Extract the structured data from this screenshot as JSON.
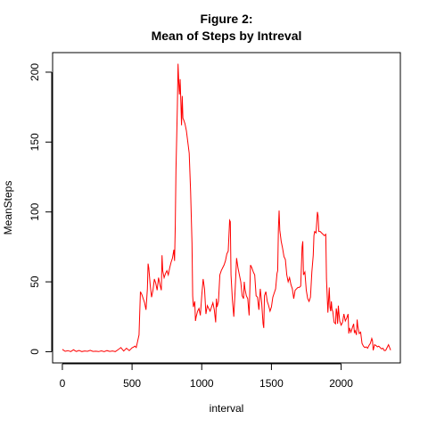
{
  "chart_data": {
    "type": "line",
    "title": "Figure 2:",
    "subtitle": "Mean of Steps by Intreval",
    "xlabel": "interval",
    "ylabel": "MeanSteps",
    "xlim": [
      -70,
      2425
    ],
    "ylim": [
      -8,
      214
    ],
    "x_ticks": [
      0,
      500,
      1000,
      1500,
      2000
    ],
    "y_ticks": [
      0,
      50,
      100,
      150,
      200
    ],
    "grid": false,
    "legend": "none",
    "line_color": "#ff0000",
    "series": [
      {
        "color": "#ff0000",
        "points": [
          [
            0,
            1.7
          ],
          [
            20,
            0.3
          ],
          [
            40,
            0.8
          ],
          [
            60,
            0.1
          ],
          [
            80,
            1.4
          ],
          [
            100,
            0.2
          ],
          [
            120,
            0.9
          ],
          [
            140,
            0.1
          ],
          [
            160,
            0.5
          ],
          [
            180,
            0.3
          ],
          [
            200,
            1.0
          ],
          [
            220,
            0.2
          ],
          [
            240,
            0.4
          ],
          [
            260,
            0.1
          ],
          [
            280,
            0.6
          ],
          [
            300,
            0.1
          ],
          [
            320,
            0.8
          ],
          [
            340,
            0.2
          ],
          [
            360,
            0.5
          ],
          [
            380,
            0.1
          ],
          [
            400,
            1.5
          ],
          [
            420,
            3.0
          ],
          [
            440,
            0.5
          ],
          [
            460,
            2.5
          ],
          [
            480,
            0.8
          ],
          [
            500,
            2.8
          ],
          [
            510,
            3.3
          ],
          [
            520,
            4.0
          ],
          [
            530,
            3.0
          ],
          [
            540,
            7.5
          ],
          [
            550,
            12.0
          ],
          [
            560,
            43.0
          ],
          [
            570,
            41.0
          ],
          [
            580,
            38.0
          ],
          [
            590,
            35.0
          ],
          [
            600,
            30.0
          ],
          [
            610,
            45.0
          ],
          [
            615,
            63.0
          ],
          [
            620,
            60.0
          ],
          [
            630,
            48.0
          ],
          [
            640,
            39.0
          ],
          [
            650,
            44.0
          ],
          [
            660,
            52.0
          ],
          [
            670,
            49.0
          ],
          [
            680,
            44.0
          ],
          [
            690,
            53.0
          ],
          [
            700,
            48.0
          ],
          [
            710,
            44.0
          ],
          [
            715,
            69.0
          ],
          [
            720,
            58.0
          ],
          [
            730,
            53.0
          ],
          [
            740,
            56.0
          ],
          [
            750,
            58.0
          ],
          [
            760,
            55.0
          ],
          [
            770,
            60.0
          ],
          [
            780,
            64.0
          ],
          [
            790,
            67.0
          ],
          [
            800,
            73.0
          ],
          [
            805,
            65.0
          ],
          [
            810,
            90.0
          ],
          [
            815,
            130.0
          ],
          [
            820,
            152.0
          ],
          [
            825,
            175.0
          ],
          [
            830,
            206.0
          ],
          [
            835,
            193.0
          ],
          [
            840,
            184.0
          ],
          [
            845,
            195.0
          ],
          [
            850,
            179.0
          ],
          [
            855,
            162.0
          ],
          [
            860,
            183.0
          ],
          [
            865,
            167.0
          ],
          [
            870,
            166.0
          ],
          [
            880,
            163.0
          ],
          [
            890,
            158.0
          ],
          [
            900,
            150.0
          ],
          [
            910,
            142.0
          ],
          [
            920,
            115.0
          ],
          [
            930,
            78.0
          ],
          [
            935,
            40.0
          ],
          [
            940,
            32.0
          ],
          [
            950,
            36.0
          ],
          [
            955,
            22.0
          ],
          [
            960,
            25.0
          ],
          [
            970,
            29.0
          ],
          [
            980,
            31.0
          ],
          [
            990,
            26.0
          ],
          [
            1000,
            40.0
          ],
          [
            1010,
            52.0
          ],
          [
            1020,
            45.0
          ],
          [
            1030,
            27.0
          ],
          [
            1040,
            33.0
          ],
          [
            1050,
            31.0
          ],
          [
            1060,
            29.0
          ],
          [
            1070,
            32.0
          ],
          [
            1080,
            35.0
          ],
          [
            1090,
            30.0
          ],
          [
            1100,
            21.0
          ],
          [
            1105,
            38.0
          ],
          [
            1110,
            32.0
          ],
          [
            1120,
            36.0
          ],
          [
            1130,
            55.0
          ],
          [
            1140,
            58.0
          ],
          [
            1150,
            60.0
          ],
          [
            1160,
            62.0
          ],
          [
            1170,
            65.0
          ],
          [
            1180,
            70.0
          ],
          [
            1190,
            72.0
          ],
          [
            1200,
            94.0
          ],
          [
            1205,
            93.0
          ],
          [
            1210,
            55.0
          ],
          [
            1220,
            37.0
          ],
          [
            1230,
            25.0
          ],
          [
            1240,
            45.0
          ],
          [
            1250,
            67.0
          ],
          [
            1260,
            60.0
          ],
          [
            1270,
            55.0
          ],
          [
            1280,
            50.0
          ],
          [
            1290,
            40.0
          ],
          [
            1300,
            38.0
          ],
          [
            1305,
            50.0
          ],
          [
            1310,
            45.0
          ],
          [
            1320,
            40.0
          ],
          [
            1330,
            38.0
          ],
          [
            1340,
            26.0
          ],
          [
            1350,
            62.0
          ],
          [
            1360,
            60.0
          ],
          [
            1370,
            57.0
          ],
          [
            1380,
            55.0
          ],
          [
            1390,
            40.0
          ],
          [
            1400,
            39.0
          ],
          [
            1410,
            30.0
          ],
          [
            1420,
            45.0
          ],
          [
            1430,
            35.0
          ],
          [
            1440,
            20.0
          ],
          [
            1445,
            17.0
          ],
          [
            1450,
            40.0
          ],
          [
            1460,
            43.0
          ],
          [
            1470,
            36.0
          ],
          [
            1480,
            33.0
          ],
          [
            1490,
            29.0
          ],
          [
            1500,
            32.0
          ],
          [
            1510,
            39.0
          ],
          [
            1520,
            42.0
          ],
          [
            1530,
            45.0
          ],
          [
            1540,
            56.0
          ],
          [
            1545,
            58.0
          ],
          [
            1550,
            88.0
          ],
          [
            1555,
            101.0
          ],
          [
            1560,
            87.0
          ],
          [
            1570,
            79.0
          ],
          [
            1580,
            74.0
          ],
          [
            1590,
            68.0
          ],
          [
            1600,
            66.0
          ],
          [
            1610,
            55.0
          ],
          [
            1620,
            50.0
          ],
          [
            1630,
            53.0
          ],
          [
            1640,
            48.0
          ],
          [
            1650,
            45.0
          ],
          [
            1660,
            38.0
          ],
          [
            1670,
            44.0
          ],
          [
            1680,
            45.0
          ],
          [
            1690,
            46.0
          ],
          [
            1700,
            46.0
          ],
          [
            1710,
            47.0
          ],
          [
            1720,
            75.0
          ],
          [
            1725,
            79.0
          ],
          [
            1730,
            55.0
          ],
          [
            1740,
            57.0
          ],
          [
            1750,
            44.0
          ],
          [
            1760,
            38.0
          ],
          [
            1770,
            36.0
          ],
          [
            1780,
            39.0
          ],
          [
            1790,
            57.0
          ],
          [
            1800,
            69.0
          ],
          [
            1805,
            83.0
          ],
          [
            1810,
            86.0
          ],
          [
            1820,
            85.0
          ],
          [
            1830,
            100.0
          ],
          [
            1835,
            97.0
          ],
          [
            1840,
            86.0
          ],
          [
            1850,
            86.0
          ],
          [
            1860,
            85.0
          ],
          [
            1870,
            84.0
          ],
          [
            1880,
            83.0
          ],
          [
            1890,
            84.0
          ],
          [
            1895,
            52.0
          ],
          [
            1900,
            40.0
          ],
          [
            1905,
            28.0
          ],
          [
            1910,
            37.0
          ],
          [
            1915,
            46.0
          ],
          [
            1920,
            32.0
          ],
          [
            1925,
            29.0
          ],
          [
            1930,
            36.0
          ],
          [
            1935,
            30.0
          ],
          [
            1940,
            29.0
          ],
          [
            1945,
            25.0
          ],
          [
            1950,
            21.0
          ],
          [
            1960,
            20.0
          ],
          [
            1965,
            31.0
          ],
          [
            1970,
            28.0
          ],
          [
            1975,
            20.0
          ],
          [
            1980,
            33.0
          ],
          [
            1985,
            27.0
          ],
          [
            1990,
            22.0
          ],
          [
            2000,
            19.0
          ],
          [
            2010,
            21.0
          ],
          [
            2020,
            27.0
          ],
          [
            2030,
            22.0
          ],
          [
            2040,
            24.0
          ],
          [
            2050,
            27.0
          ],
          [
            2055,
            13.0
          ],
          [
            2060,
            17.0
          ],
          [
            2070,
            14.0
          ],
          [
            2080,
            17.0
          ],
          [
            2090,
            20.0
          ],
          [
            2095,
            14.0
          ],
          [
            2100,
            15.0
          ],
          [
            2110,
            12.0
          ],
          [
            2115,
            23.0
          ],
          [
            2120,
            18.0
          ],
          [
            2130,
            13.0
          ],
          [
            2140,
            14.0
          ],
          [
            2150,
            6.0
          ],
          [
            2160,
            4.0
          ],
          [
            2170,
            3.0
          ],
          [
            2180,
            3.5
          ],
          [
            2190,
            2.5
          ],
          [
            2200,
            4.5
          ],
          [
            2210,
            6.0
          ],
          [
            2220,
            9.5
          ],
          [
            2225,
            8.0
          ],
          [
            2230,
            1.0
          ],
          [
            2240,
            5.0
          ],
          [
            2250,
            4.5
          ],
          [
            2260,
            3.5
          ],
          [
            2270,
            4.0
          ],
          [
            2280,
            3.0
          ],
          [
            2290,
            2.0
          ],
          [
            2300,
            2.5
          ],
          [
            2310,
            0.8
          ],
          [
            2320,
            1.0
          ],
          [
            2330,
            3.0
          ],
          [
            2340,
            5.0
          ],
          [
            2355,
            1.1
          ]
        ]
      }
    ]
  }
}
